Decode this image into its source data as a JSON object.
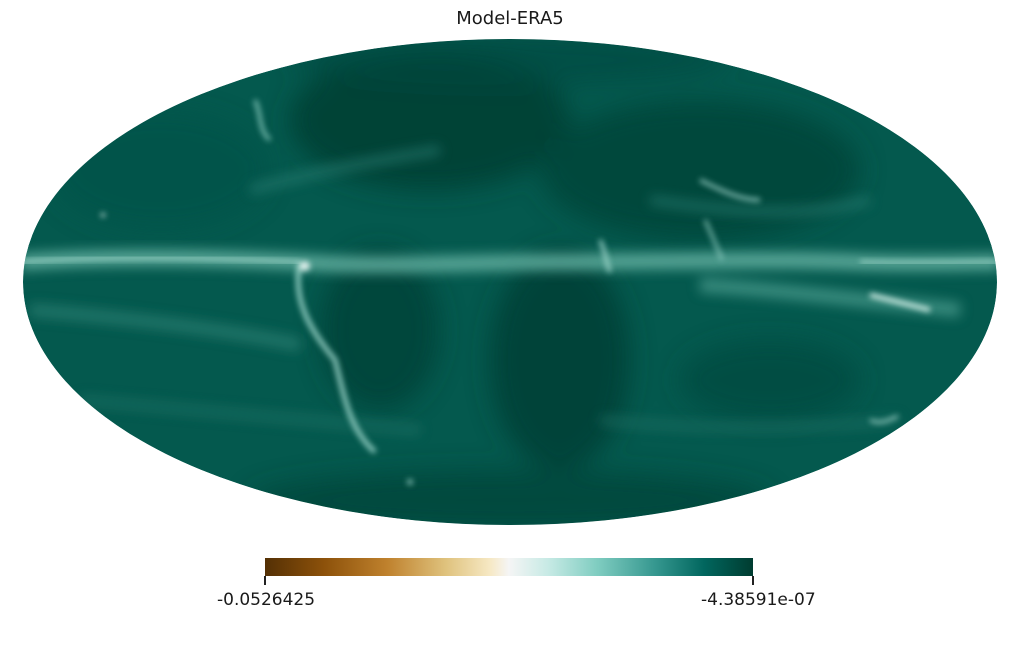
{
  "title": "Model-ERA5",
  "projection": "Mollweide",
  "colormap": "BrBG",
  "colorbar": {
    "min_label": "-0.0526425",
    "max_label": "-4.38591e-07",
    "min_value": -0.0526425,
    "max_value": -4.38591e-07
  },
  "colors": {
    "ocean_base": "#04584d",
    "dark_region": "#024237",
    "light_band": "#5aa89c",
    "highlight": "#d6efe9"
  }
}
